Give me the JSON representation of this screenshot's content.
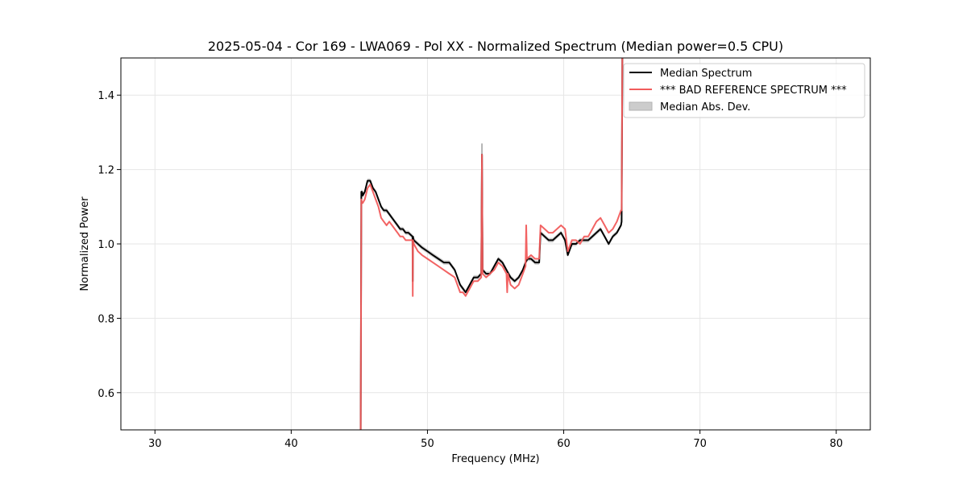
{
  "chart_data": {
    "type": "line",
    "title": "2025-05-04 - Cor 169 - LWA069 - Pol XX - Normalized Spectrum (Median power=0.5 CPU)",
    "xlabel": "Frequency (MHz)",
    "ylabel": "Normalized Power",
    "xlim": [
      27.5,
      82.5
    ],
    "ylim": [
      0.5,
      1.5
    ],
    "xticks": [
      30,
      40,
      50,
      60,
      70,
      80
    ],
    "yticks": [
      0.6,
      0.8,
      1.0,
      1.2,
      1.4
    ],
    "xtick_labels": [
      "30",
      "40",
      "50",
      "60",
      "70",
      "80"
    ],
    "ytick_labels": [
      "0.6",
      "0.8",
      "1.0",
      "1.2",
      "1.4"
    ],
    "grid": true,
    "legend_position": "top-right",
    "legend": [
      "Median Spectrum",
      "*** BAD REFERENCE SPECTRUM ***",
      "Median Abs. Dev."
    ],
    "series": [
      {
        "name": "Median Spectrum",
        "color": "#000000",
        "x": [
          45.1,
          45.15,
          45.2,
          45.25,
          45.4,
          45.6,
          45.8,
          46.0,
          46.2,
          46.4,
          46.6,
          46.8,
          47.0,
          47.2,
          47.4,
          47.6,
          47.8,
          48.0,
          48.2,
          48.4,
          48.6,
          48.9,
          48.92,
          48.94,
          49.0,
          49.3,
          49.6,
          50.0,
          50.4,
          50.8,
          51.2,
          51.6,
          52.0,
          52.4,
          52.6,
          52.8,
          53.1,
          53.4,
          53.7,
          53.95,
          54.0,
          54.05,
          54.3,
          54.6,
          54.9,
          55.2,
          55.5,
          55.8,
          56.1,
          56.4,
          56.7,
          57.0,
          57.2,
          57.35,
          57.6,
          57.9,
          58.2,
          58.3,
          58.6,
          58.9,
          59.2,
          59.5,
          59.8,
          60.1,
          60.3,
          60.6,
          60.9,
          61.2,
          61.5,
          61.8,
          62.1,
          62.4,
          62.7,
          63.0,
          63.3,
          63.6,
          63.9,
          64.2,
          64.25,
          64.3
        ],
        "values": [
          0.5,
          1.14,
          1.14,
          1.13,
          1.14,
          1.17,
          1.17,
          1.15,
          1.14,
          1.12,
          1.1,
          1.09,
          1.09,
          1.08,
          1.07,
          1.06,
          1.05,
          1.04,
          1.04,
          1.03,
          1.03,
          1.02,
          0.9,
          1.02,
          1.01,
          1.0,
          0.99,
          0.98,
          0.97,
          0.96,
          0.95,
          0.95,
          0.93,
          0.89,
          0.88,
          0.87,
          0.89,
          0.91,
          0.91,
          0.92,
          1.24,
          0.93,
          0.92,
          0.92,
          0.94,
          0.96,
          0.95,
          0.93,
          0.91,
          0.9,
          0.91,
          0.93,
          0.95,
          0.96,
          0.96,
          0.95,
          0.95,
          1.03,
          1.02,
          1.01,
          1.01,
          1.02,
          1.03,
          1.01,
          0.97,
          1.0,
          1.0,
          1.01,
          1.01,
          1.01,
          1.02,
          1.03,
          1.04,
          1.02,
          1.0,
          1.02,
          1.03,
          1.05,
          1.06,
          1.5
        ]
      },
      {
        "name": "*** BAD REFERENCE SPECTRUM ***",
        "color": "#f15b5b",
        "x": [
          45.1,
          45.15,
          45.2,
          45.25,
          45.4,
          45.6,
          45.8,
          46.0,
          46.2,
          46.4,
          46.6,
          46.8,
          47.0,
          47.2,
          47.4,
          47.6,
          47.8,
          48.0,
          48.2,
          48.4,
          48.6,
          48.9,
          48.92,
          48.94,
          49.0,
          49.3,
          49.6,
          50.0,
          50.4,
          50.8,
          51.2,
          51.6,
          52.0,
          52.4,
          52.6,
          52.8,
          53.1,
          53.4,
          53.7,
          53.95,
          54.0,
          54.05,
          54.3,
          54.6,
          54.9,
          55.2,
          55.5,
          55.8,
          55.85,
          55.9,
          56.1,
          56.4,
          56.7,
          57.0,
          57.2,
          57.25,
          57.3,
          57.6,
          57.9,
          58.2,
          58.3,
          58.6,
          58.9,
          59.2,
          59.5,
          59.8,
          60.1,
          60.3,
          60.6,
          60.9,
          61.2,
          61.5,
          61.8,
          62.1,
          62.4,
          62.7,
          63.0,
          63.3,
          63.6,
          63.9,
          64.2,
          64.25,
          64.3
        ],
        "values": [
          0.5,
          1.12,
          1.11,
          1.11,
          1.12,
          1.15,
          1.16,
          1.14,
          1.12,
          1.1,
          1.07,
          1.06,
          1.05,
          1.06,
          1.05,
          1.04,
          1.03,
          1.02,
          1.02,
          1.01,
          1.01,
          1.01,
          0.86,
          1.01,
          1.0,
          0.98,
          0.97,
          0.96,
          0.95,
          0.94,
          0.93,
          0.92,
          0.91,
          0.87,
          0.87,
          0.86,
          0.88,
          0.9,
          0.9,
          0.91,
          1.24,
          0.92,
          0.91,
          0.92,
          0.93,
          0.95,
          0.94,
          0.92,
          0.87,
          0.92,
          0.89,
          0.88,
          0.89,
          0.92,
          0.94,
          1.05,
          0.96,
          0.97,
          0.96,
          0.96,
          1.05,
          1.04,
          1.03,
          1.03,
          1.04,
          1.05,
          1.04,
          0.98,
          1.01,
          1.01,
          1.0,
          1.02,
          1.02,
          1.04,
          1.06,
          1.07,
          1.05,
          1.03,
          1.04,
          1.06,
          1.09,
          1.09,
          1.5
        ]
      }
    ],
    "band": {
      "name": "Median Abs. Dev.",
      "color": "#b3b3b3",
      "half_width": 0.006,
      "spike": {
        "x": 54.0,
        "low": 1.22,
        "high": 1.27
      }
    },
    "colors": {
      "median": "#000000",
      "reference": "#f15b5b",
      "mad": "#cccccc",
      "grid": "#e6e6e6"
    }
  }
}
